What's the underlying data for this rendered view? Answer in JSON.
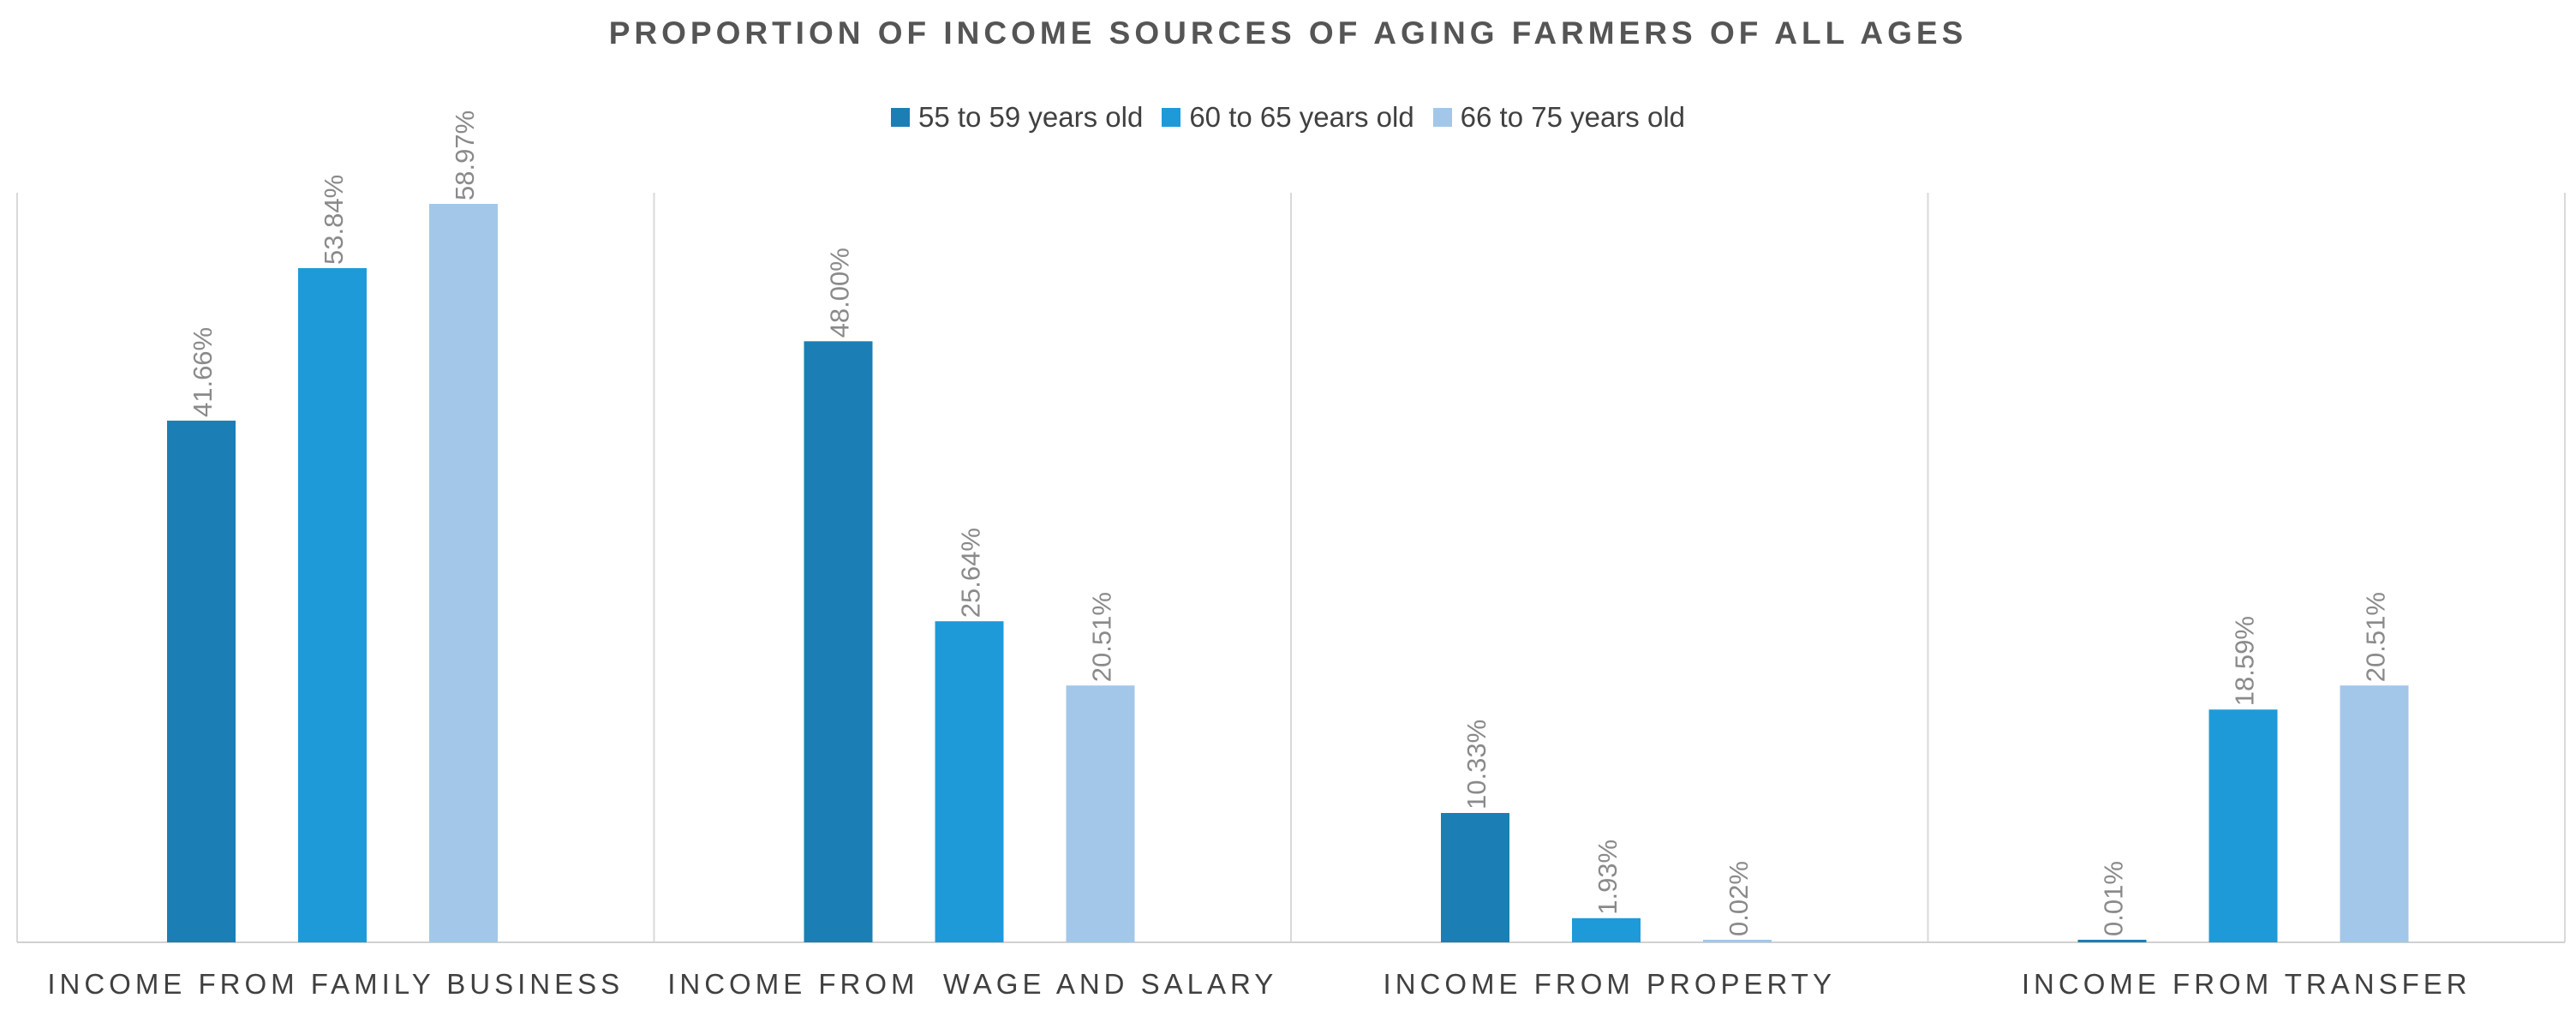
{
  "chart_data": {
    "type": "bar",
    "title": "PROPORTION OF INCOME SOURCES OF AGING FARMERS OF ALL AGES",
    "categories": [
      "INCOME FROM FAMILY BUSINESS",
      "INCOME FROM  WAGE AND SALARY",
      "INCOME FROM PROPERTY",
      "INCOME FROM TRANSFER"
    ],
    "series": [
      {
        "name": "55 to 59 years old",
        "color": "#1b7fb5",
        "values": [
          41.66,
          48.0,
          10.33,
          0.01
        ],
        "labels": [
          "41.66%",
          "48.00%",
          "10.33%",
          "0.01%"
        ]
      },
      {
        "name": "60 to 65 years old",
        "color": "#1f9ad9",
        "values": [
          53.84,
          25.64,
          1.93,
          18.59
        ],
        "labels": [
          "53.84%",
          "25.64%",
          "1.93%",
          "18.59%"
        ]
      },
      {
        "name": "66 to 75 years old",
        "color": "#a3c7e8",
        "values": [
          58.97,
          20.51,
          0.02,
          20.51
        ],
        "labels": [
          "58.97%",
          "20.51%",
          "0.02%",
          "20.51%"
        ]
      }
    ],
    "xlabel": "",
    "ylabel": "",
    "ylim": [
      0,
      60
    ],
    "grid": false,
    "legend_position": "top"
  }
}
